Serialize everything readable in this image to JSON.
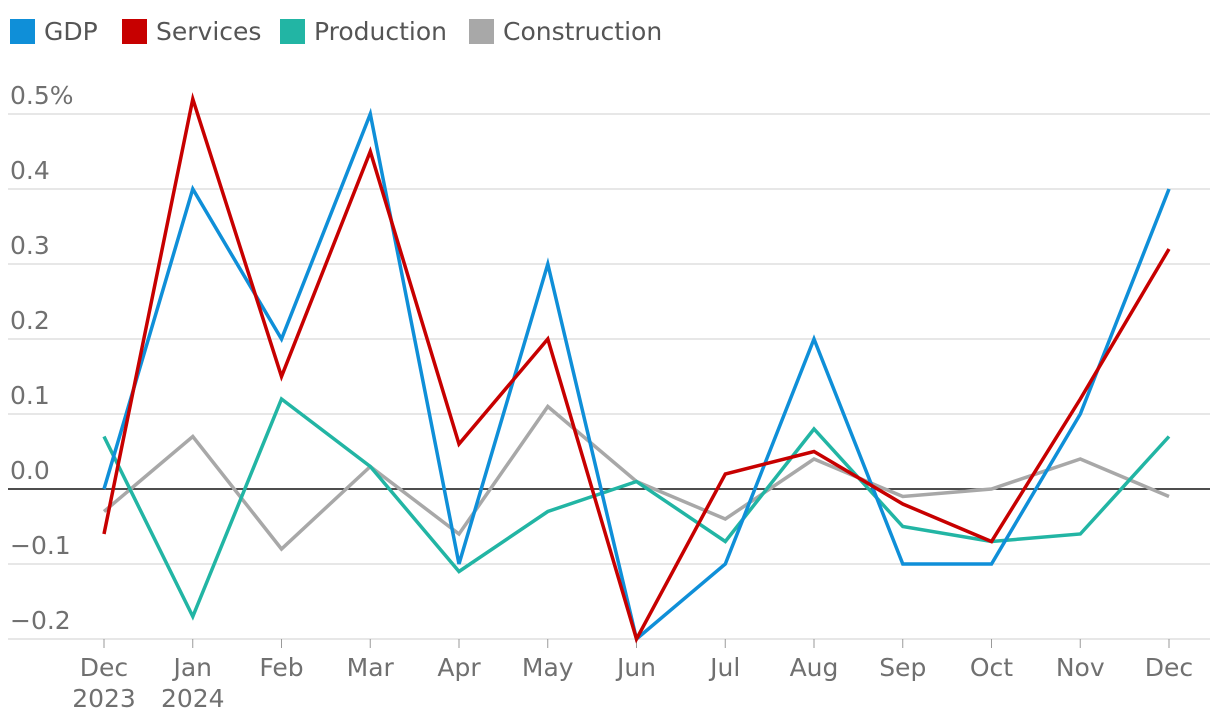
{
  "chart_data": {
    "type": "line",
    "title": "",
    "xlabel": "",
    "ylabel": "",
    "ylim": [
      -0.2,
      0.5
    ],
    "yticks": [
      {
        "value": 0.5,
        "label": "0.5%"
      },
      {
        "value": 0.4,
        "label": "0.4"
      },
      {
        "value": 0.3,
        "label": "0.3"
      },
      {
        "value": 0.2,
        "label": "0.2"
      },
      {
        "value": 0.1,
        "label": "0.1"
      },
      {
        "value": 0.0,
        "label": "0.0"
      },
      {
        "value": -0.1,
        "label": "−0.1"
      },
      {
        "value": -0.2,
        "label": "−0.2"
      }
    ],
    "categories": [
      {
        "line1": "Dec",
        "line2": "2023"
      },
      {
        "line1": "Jan",
        "line2": "2024"
      },
      {
        "line1": "Feb",
        "line2": ""
      },
      {
        "line1": "Mar",
        "line2": ""
      },
      {
        "line1": "Apr",
        "line2": ""
      },
      {
        "line1": "May",
        "line2": ""
      },
      {
        "line1": "Jun",
        "line2": ""
      },
      {
        "line1": "Jul",
        "line2": ""
      },
      {
        "line1": "Aug",
        "line2": ""
      },
      {
        "line1": "Sep",
        "line2": ""
      },
      {
        "line1": "Oct",
        "line2": ""
      },
      {
        "line1": "Nov",
        "line2": ""
      },
      {
        "line1": "Dec",
        "line2": ""
      }
    ],
    "legend_position": "top-left",
    "grid": true,
    "series": [
      {
        "name": "GDP",
        "color": "#0f8fd8",
        "values": [
          0.0,
          0.4,
          0.2,
          0.5,
          -0.1,
          0.3,
          -0.2,
          -0.1,
          0.2,
          -0.1,
          -0.1,
          0.1,
          0.4
        ]
      },
      {
        "name": "Services",
        "color": "#c70000",
        "values": [
          -0.06,
          0.52,
          0.15,
          0.45,
          0.06,
          0.2,
          -0.2,
          0.02,
          0.05,
          -0.02,
          -0.07,
          0.12,
          0.32
        ]
      },
      {
        "name": "Production",
        "color": "#22b5a4",
        "values": [
          0.07,
          -0.17,
          0.12,
          0.03,
          -0.11,
          -0.03,
          0.01,
          -0.07,
          0.08,
          -0.05,
          -0.07,
          -0.06,
          0.07
        ]
      },
      {
        "name": "Construction",
        "color": "#a8a8a8",
        "values": [
          -0.03,
          0.07,
          -0.08,
          0.03,
          -0.06,
          0.11,
          0.01,
          -0.04,
          0.04,
          -0.01,
          0.0,
          0.04,
          -0.01
        ]
      }
    ]
  }
}
